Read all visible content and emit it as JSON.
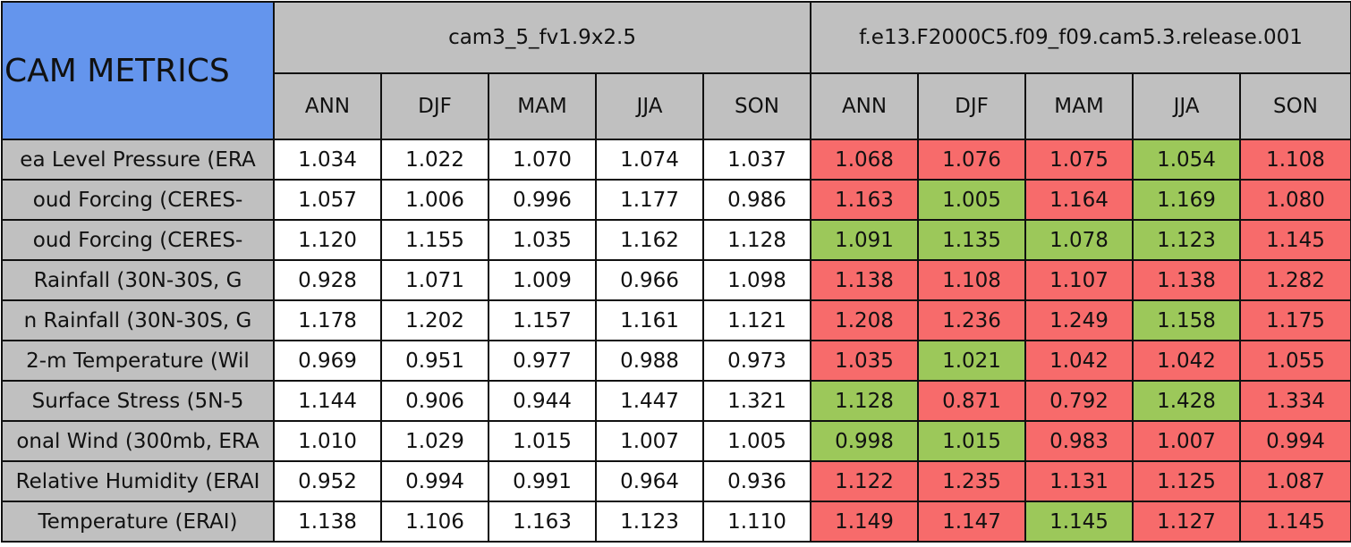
{
  "header": {
    "corner": "CAM METRICS",
    "groups": [
      {
        "name": "cam3_5_fv1.9x2.5",
        "seasons": [
          "ANN",
          "DJF",
          "MAM",
          "JJA",
          "SON"
        ]
      },
      {
        "name": "f.e13.F2000C5.f09_f09.cam5.3.release.001",
        "seasons": [
          "ANN",
          "DJF",
          "MAM",
          "JJA",
          "SON"
        ]
      }
    ]
  },
  "rows": [
    {
      "label": "ea Level Pressure (ERA",
      "cells": [
        "1.034",
        "1.022",
        "1.070",
        "1.074",
        "1.037",
        "1.068",
        "1.076",
        "1.075",
        "1.054",
        "1.108"
      ],
      "fills": [
        "#ffffff",
        "#ffffff",
        "#ffffff",
        "#ffffff",
        "#ffffff",
        "#f76b6b",
        "#f76b6b",
        "#f76b6b",
        "#9cc85a",
        "#f76b6b"
      ]
    },
    {
      "label": "oud Forcing (CERES-",
      "cells": [
        "1.057",
        "1.006",
        "0.996",
        "1.177",
        "0.986",
        "1.163",
        "1.005",
        "1.164",
        "1.169",
        "1.080"
      ],
      "fills": [
        "#ffffff",
        "#ffffff",
        "#ffffff",
        "#ffffff",
        "#ffffff",
        "#f76b6b",
        "#9cc85a",
        "#f76b6b",
        "#9cc85a",
        "#f76b6b"
      ]
    },
    {
      "label": "oud Forcing (CERES-",
      "cells": [
        "1.120",
        "1.155",
        "1.035",
        "1.162",
        "1.128",
        "1.091",
        "1.135",
        "1.078",
        "1.123",
        "1.145"
      ],
      "fills": [
        "#ffffff",
        "#ffffff",
        "#ffffff",
        "#ffffff",
        "#ffffff",
        "#9cc85a",
        "#9cc85a",
        "#9cc85a",
        "#9cc85a",
        "#f76b6b"
      ]
    },
    {
      "label": "Rainfall (30N-30S, G",
      "cells": [
        "0.928",
        "1.071",
        "1.009",
        "0.966",
        "1.098",
        "1.138",
        "1.108",
        "1.107",
        "1.138",
        "1.282"
      ],
      "fills": [
        "#ffffff",
        "#ffffff",
        "#ffffff",
        "#ffffff",
        "#ffffff",
        "#f76b6b",
        "#f76b6b",
        "#f76b6b",
        "#f76b6b",
        "#f76b6b"
      ]
    },
    {
      "label": "n Rainfall (30N-30S, G",
      "cells": [
        "1.178",
        "1.202",
        "1.157",
        "1.161",
        "1.121",
        "1.208",
        "1.236",
        "1.249",
        "1.158",
        "1.175"
      ],
      "fills": [
        "#ffffff",
        "#ffffff",
        "#ffffff",
        "#ffffff",
        "#ffffff",
        "#f76b6b",
        "#f76b6b",
        "#f76b6b",
        "#9cc85a",
        "#f76b6b"
      ]
    },
    {
      "label": "2-m Temperature (Wil",
      "cells": [
        "0.969",
        "0.951",
        "0.977",
        "0.988",
        "0.973",
        "1.035",
        "1.021",
        "1.042",
        "1.042",
        "1.055"
      ],
      "fills": [
        "#ffffff",
        "#ffffff",
        "#ffffff",
        "#ffffff",
        "#ffffff",
        "#f76b6b",
        "#9cc85a",
        "#f76b6b",
        "#f76b6b",
        "#f76b6b"
      ]
    },
    {
      "label": "Surface Stress (5N-5",
      "cells": [
        "1.144",
        "0.906",
        "0.944",
        "1.447",
        "1.321",
        "1.128",
        "0.871",
        "0.792",
        "1.428",
        "1.334"
      ],
      "fills": [
        "#ffffff",
        "#ffffff",
        "#ffffff",
        "#ffffff",
        "#ffffff",
        "#9cc85a",
        "#f76b6b",
        "#f76b6b",
        "#9cc85a",
        "#f76b6b"
      ]
    },
    {
      "label": "onal Wind (300mb, ERA",
      "cells": [
        "1.010",
        "1.029",
        "1.015",
        "1.007",
        "1.005",
        "0.998",
        "1.015",
        "0.983",
        "1.007",
        "0.994"
      ],
      "fills": [
        "#ffffff",
        "#ffffff",
        "#ffffff",
        "#ffffff",
        "#ffffff",
        "#9cc85a",
        "#9cc85a",
        "#f76b6b",
        "#f76b6b",
        "#f76b6b"
      ]
    },
    {
      "label": "Relative Humidity (ERAI",
      "cells": [
        "0.952",
        "0.994",
        "0.991",
        "0.964",
        "0.936",
        "1.122",
        "1.235",
        "1.131",
        "1.125",
        "1.087"
      ],
      "fills": [
        "#ffffff",
        "#ffffff",
        "#ffffff",
        "#ffffff",
        "#ffffff",
        "#f76b6b",
        "#f76b6b",
        "#f76b6b",
        "#f76b6b",
        "#f76b6b"
      ]
    },
    {
      "label": "Temperature (ERAI)",
      "cells": [
        "1.138",
        "1.106",
        "1.163",
        "1.123",
        "1.110",
        "1.149",
        "1.147",
        "1.145",
        "1.127",
        "1.145"
      ],
      "fills": [
        "#ffffff",
        "#ffffff",
        "#ffffff",
        "#ffffff",
        "#ffffff",
        "#f76b6b",
        "#f76b6b",
        "#9cc85a",
        "#f76b6b",
        "#f76b6b"
      ]
    }
  ]
}
